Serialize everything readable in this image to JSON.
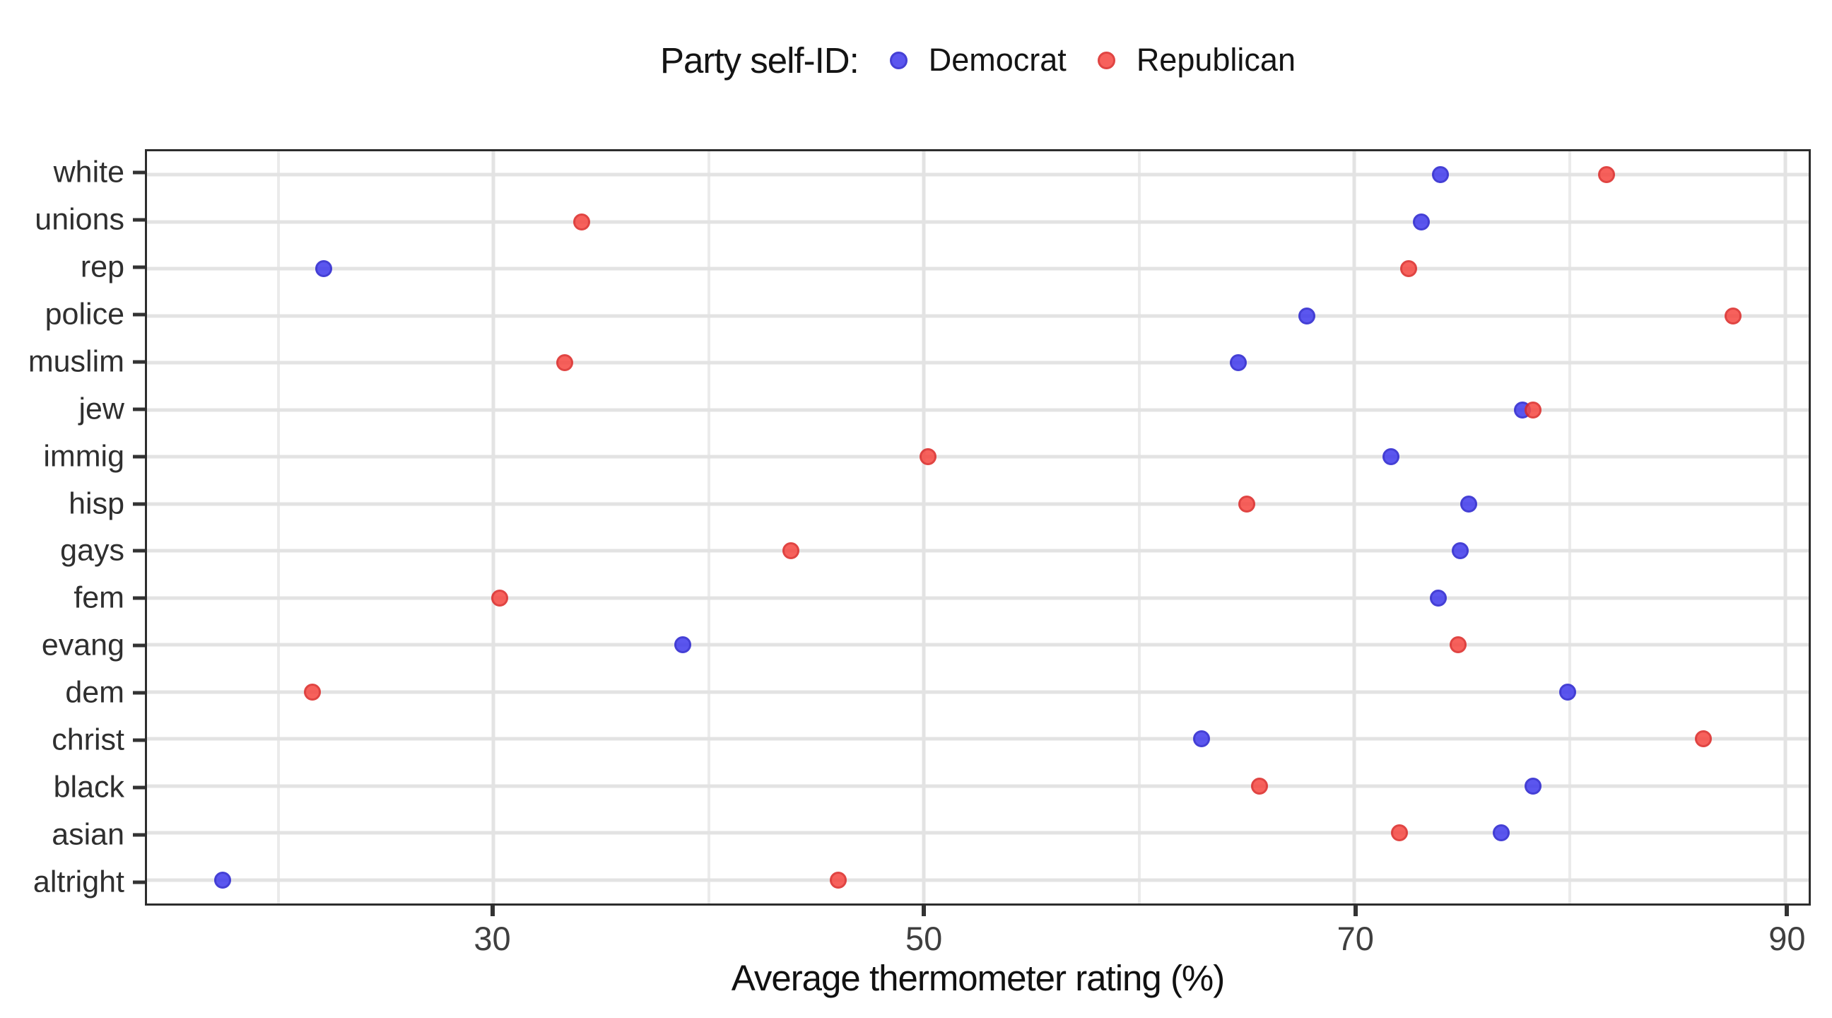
{
  "legend": {
    "title": "Party self-ID:",
    "items": [
      {
        "label": "Democrat",
        "fill": "#433ded",
        "stroke": "#2a24cf"
      },
      {
        "label": "Republican",
        "fill": "#f64a44",
        "stroke": "#dc2a28"
      }
    ]
  },
  "x_axis": {
    "title": "Average thermometer rating (%)",
    "tick_labels": [
      "30",
      "50",
      "70",
      "90"
    ]
  },
  "panel_colors": {
    "background": "#ffffff",
    "border": "#2d2d2d",
    "grid_major": "#e3e3e3",
    "grid_minor": "#ebebeb",
    "tick": "#333333"
  },
  "chart_data": {
    "type": "scatter",
    "subtype": "horizontal-dot-plot",
    "title": "",
    "legend_title": "Party self-ID:",
    "legend_position": "top-center",
    "xlabel": "Average thermometer rating (%)",
    "ylabel": "",
    "grid": true,
    "xlim": [
      13.9,
      91.1
    ],
    "x_major_ticks": [
      30,
      50,
      70,
      90
    ],
    "x_minor_gridlines": [
      20,
      40,
      60,
      80
    ],
    "categories": [
      "white",
      "unions",
      "rep",
      "police",
      "muslim",
      "jew",
      "immig",
      "hisp",
      "gays",
      "fem",
      "evang",
      "dem",
      "christ",
      "black",
      "asian",
      "altright"
    ],
    "series": [
      {
        "name": "Democrat",
        "fill": "#433ded",
        "stroke": "#2a24cf",
        "values": [
          74.0,
          73.1,
          22.1,
          67.8,
          64.6,
          77.8,
          71.7,
          75.3,
          74.9,
          73.9,
          38.8,
          79.9,
          62.9,
          78.3,
          76.8,
          17.4
        ]
      },
      {
        "name": "Republican",
        "fill": "#f64a44",
        "stroke": "#dc2a28",
        "values": [
          81.7,
          34.1,
          72.5,
          87.6,
          33.3,
          78.3,
          50.2,
          65.0,
          43.8,
          30.3,
          74.8,
          21.6,
          86.2,
          65.6,
          72.1,
          46.0
        ]
      }
    ]
  }
}
